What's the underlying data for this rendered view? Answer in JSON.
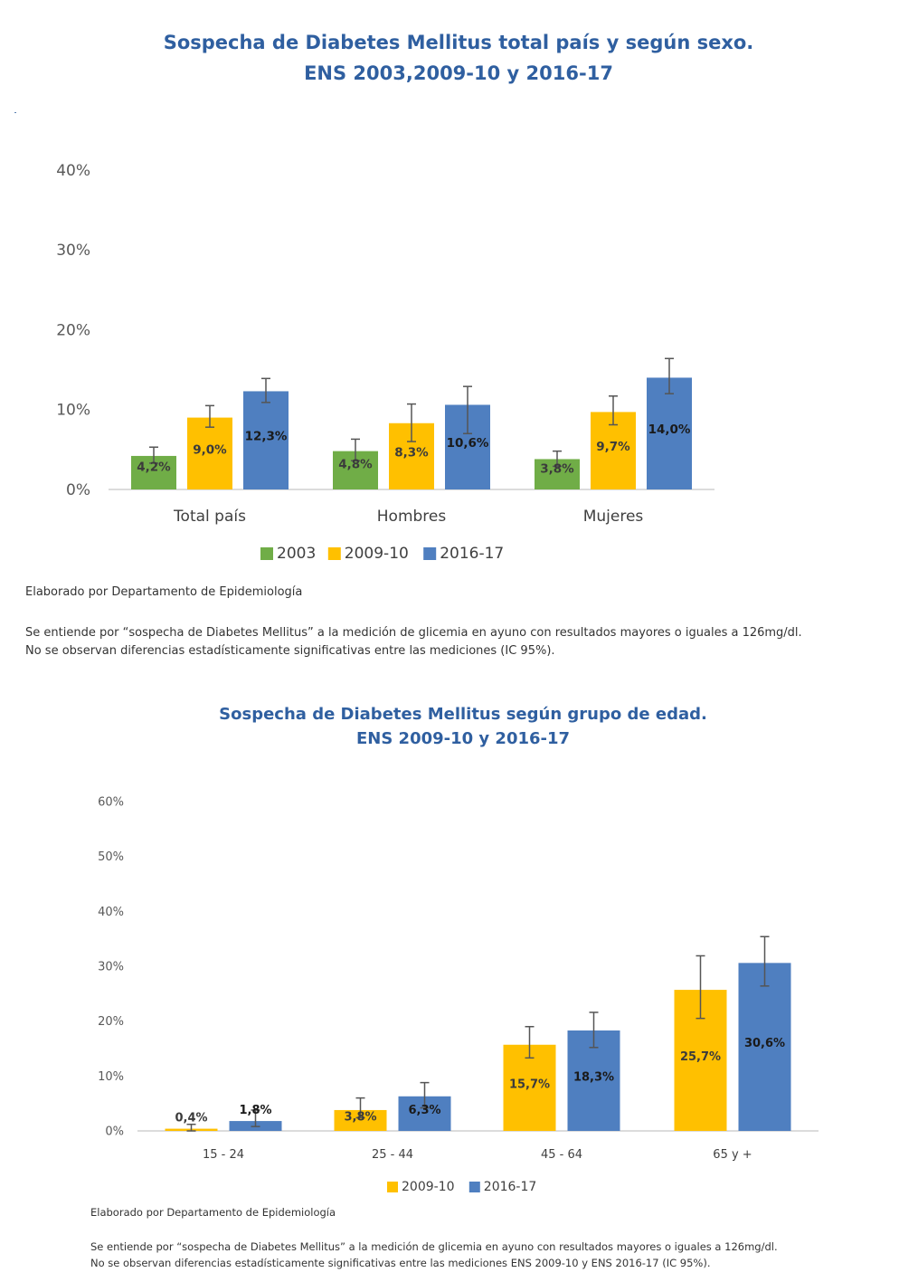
{
  "chart_data": [
    {
      "type": "bar",
      "title": "Sospecha de Diabetes Mellitus total país y según sexo.",
      "subtitle": "ENS 2003,2009-10 y 2016-17",
      "categories": [
        "Total país",
        "Hombres",
        "Mujeres"
      ],
      "series": [
        {
          "name": "2003",
          "color": "#70ad47",
          "values": [
            4.2,
            4.8,
            3.8
          ],
          "labels": [
            "4,2%",
            "4,8%",
            "3,8%"
          ],
          "ci": [
            [
              3.3,
              5.3
            ],
            [
              3.6,
              6.3
            ],
            [
              2.9,
              4.8
            ]
          ]
        },
        {
          "name": "2009-10",
          "color": "#ffc000",
          "values": [
            9.0,
            8.3,
            9.7
          ],
          "labels": [
            "9,0%",
            "8,3%",
            "9,7%"
          ],
          "ci": [
            [
              7.8,
              10.5
            ],
            [
              6.0,
              10.7
            ],
            [
              8.1,
              11.7
            ]
          ]
        },
        {
          "name": "2016-17",
          "color": "#4f7fc0",
          "values": [
            12.3,
            10.6,
            14.0
          ],
          "labels": [
            "12,3%",
            "10,6%",
            "14,0%"
          ],
          "ci": [
            [
              10.9,
              13.9
            ],
            [
              7.0,
              12.9
            ],
            [
              12.0,
              16.4
            ]
          ]
        }
      ],
      "ylim": [
        0,
        40
      ],
      "yticks": [
        "0%",
        "10%",
        "20%",
        "30%",
        "40%"
      ],
      "legend": "bottom",
      "grid": false
    },
    {
      "type": "bar",
      "title": "Sospecha de Diabetes Mellitus según grupo de edad.",
      "subtitle": "ENS 2009-10 y 2016-17",
      "categories": [
        "15 - 24",
        "25 - 44",
        "45 - 64",
        "65 y +"
      ],
      "series": [
        {
          "name": "2009-10",
          "color": "#ffc000",
          "values": [
            0.4,
            3.8,
            15.7,
            25.7
          ],
          "labels": [
            "0,4%",
            "3,8%",
            "15,7%",
            "25,7%"
          ],
          "ci": [
            [
              0.0,
              1.2
            ],
            [
              2.4,
              6.0
            ],
            [
              13.3,
              19.0
            ],
            [
              20.5,
              31.9
            ]
          ]
        },
        {
          "name": "2016-17",
          "color": "#4f7fc0",
          "values": [
            1.8,
            6.3,
            18.3,
            30.6
          ],
          "labels": [
            "1,8%",
            "6,3%",
            "18,3%",
            "30,6%"
          ],
          "ci": [
            [
              0.8,
              3.8
            ],
            [
              4.2,
              8.8
            ],
            [
              15.2,
              21.6
            ],
            [
              26.4,
              35.4
            ]
          ]
        }
      ],
      "ylim": [
        0,
        60
      ],
      "yticks": [
        "0%",
        "10%",
        "20%",
        "30%",
        "40%",
        "50%",
        "60%"
      ],
      "legend": "bottom",
      "grid": false
    }
  ],
  "notes": {
    "source1": "Elaborado por Departamento de Epidemiología",
    "def1_line1": "Se entiende por “sospecha de Diabetes Mellitus” a la medición de glicemia en ayuno con resultados mayores o iguales a 126mg/dl.",
    "def1_line2": "No se observan diferencias estadísticamente significativas entre las mediciones (IC 95%).",
    "source2": "Elaborado por Departamento de Epidemiología",
    "def2_line1": "Se entiende por “sospecha de Diabetes Mellitus” a la medición de glicemia en ayuno con resultados mayores o iguales a 126mg/dl.",
    "def2_line2": "No se observan diferencias estadísticamente significativas entre las mediciones ENS 2009-10 y ENS 2016-17 (IC 95%)."
  }
}
